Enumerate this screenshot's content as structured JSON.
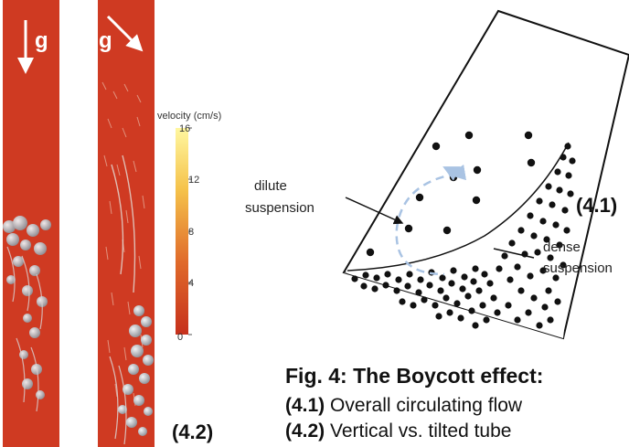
{
  "panel_42": {
    "left_tube": {
      "gravity_label": "g",
      "gravity_direction": "vertical"
    },
    "right_tube": {
      "gravity_label": "g",
      "gravity_direction": "tilted"
    },
    "colorbar": {
      "title": "velocity (cm/s)",
      "ticks": [
        "16",
        "12",
        "8",
        "4",
        "0"
      ],
      "color_low": "#c6301c",
      "color_high": "#fff7a0"
    },
    "tag": "(4.2)"
  },
  "panel_41": {
    "dilute_label_line1": "dilute",
    "dilute_label_line2": "suspension",
    "dense_label_line1": "dense",
    "dense_label_line2": "suspension",
    "tag": "(4.1)"
  },
  "caption": {
    "title": "Fig. 4: The Boycott effect:",
    "line1_tag": "(4.1)",
    "line1_text": " Overall circulating flow",
    "line2_tag": "(4.2)",
    "line2_text": " Vertical vs. tilted tube"
  },
  "colors": {
    "tube_red": "#cf3a22",
    "particle_dark": "#111111",
    "flow_arrow": "#a9c3e3",
    "particle_grey": "#b9bcc2"
  }
}
